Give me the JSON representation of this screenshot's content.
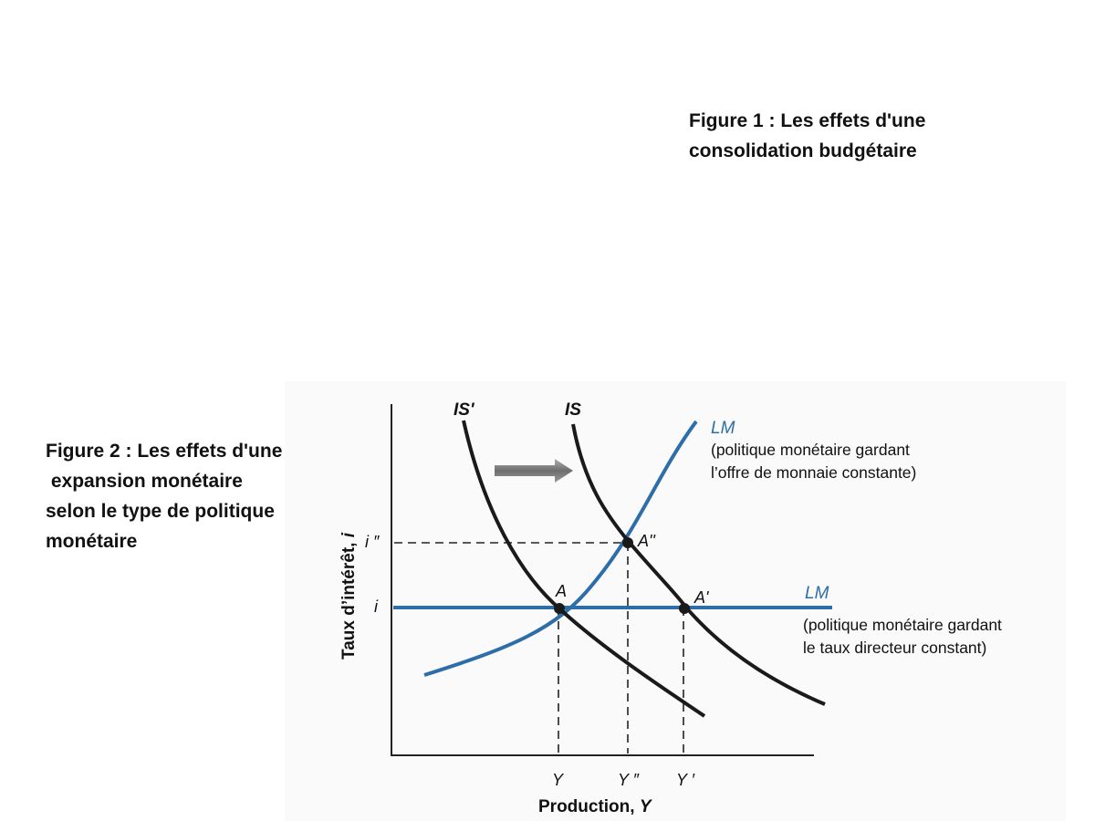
{
  "captions": {
    "figure1": [
      "Figure 1 : Les effets d'une",
      "consolidation budgétaire"
    ],
    "figure2": [
      "Figure 2 : Les effets d'une",
      " expansion monétaire",
      "selon le type de politique",
      "monétaire"
    ]
  },
  "diagram": {
    "curves": {
      "is_prime": "IS'",
      "is": "IS",
      "lm_money": "LM",
      "lm_money_note": [
        "(politique monétaire gardant",
        "l’offre de monnaie constante)"
      ],
      "lm_rate": "LM",
      "lm_rate_note": [
        "(politique monétaire gardant",
        "le taux directeur constant)"
      ]
    },
    "points": {
      "a": "A",
      "a_prime": "A'",
      "a_double": "A''"
    },
    "y_ticks": {
      "i_double": "i ″",
      "i": "i"
    },
    "x_ticks": {
      "y": "Y",
      "y_double": "Y ″",
      "y_prime": "Y ′"
    },
    "axes": {
      "x_title": "Production, ",
      "x_var": "Y",
      "y_title": "Taux d’intérêt, ",
      "y_var": "i"
    },
    "colors": {
      "lm": "#2d6ea8",
      "is": "#1a1a1a",
      "arrow": "#8a8a8a"
    },
    "arrow": "shift-right-arrow"
  }
}
